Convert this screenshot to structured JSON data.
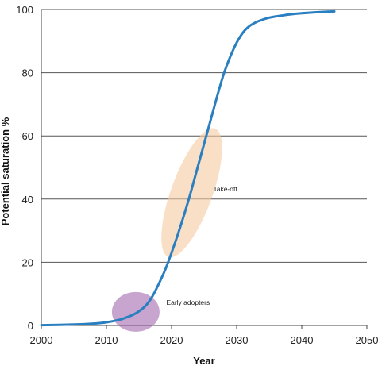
{
  "chart_data": {
    "type": "line",
    "title": "",
    "xlabel": "Year",
    "ylabel": "Potential saturation %",
    "xlim": [
      2000,
      2050
    ],
    "ylim": [
      0,
      100
    ],
    "xticks": [
      2000,
      2010,
      2020,
      2030,
      2040,
      2050
    ],
    "yticks": [
      0,
      20,
      40,
      60,
      80,
      100
    ],
    "grid": "horizontal",
    "legend": "none",
    "series": [
      {
        "color": "#2a7fc1",
        "x": [
          2000,
          2005,
          2008,
          2010,
          2012,
          2013,
          2014,
          2015,
          2016,
          2017,
          2018,
          2019,
          2020,
          2021,
          2022,
          2023,
          2024,
          2025,
          2026,
          2027,
          2028,
          2029,
          2030,
          2031,
          2032,
          2033,
          2034,
          2035,
          2036,
          2037,
          2038,
          2040,
          2042,
          2045
        ],
        "y": [
          0.1,
          0.3,
          0.6,
          1.0,
          1.8,
          2.5,
          3.3,
          4.5,
          6.2,
          9.0,
          13.0,
          17.5,
          23.0,
          29.0,
          35.5,
          42.5,
          50.0,
          57.5,
          65.0,
          72.5,
          79.5,
          85.0,
          89.5,
          92.8,
          94.8,
          96.0,
          96.8,
          97.4,
          97.8,
          98.1,
          98.4,
          98.8,
          99.1,
          99.4
        ]
      }
    ],
    "annotations": [
      {
        "text": "Early adopters",
        "x": 2014,
        "y": 4,
        "color": "#9b5ba5"
      },
      {
        "text": "Take-off",
        "x": 2023,
        "y": 43,
        "color": "#f5c9a0"
      }
    ]
  }
}
